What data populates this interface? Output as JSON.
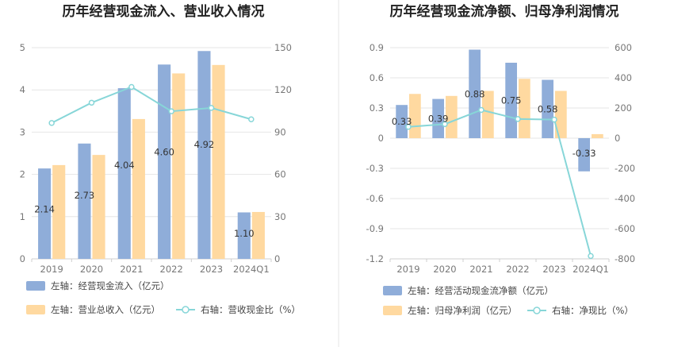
{
  "colors": {
    "bar1": "#8fadd9",
    "bar2": "#ffd9a0",
    "line": "#87d6d8",
    "grid": "#e6e6e6",
    "divider": "#e6e6e6"
  },
  "chart_data": [
    {
      "type": "bar",
      "title": "历年经营现金流入、营业收入情况",
      "categories": [
        "2019",
        "2020",
        "2021",
        "2022",
        "2023",
        "2024Q1"
      ],
      "left_axis": {
        "ticks": [
          "0",
          "1",
          "2",
          "3",
          "4",
          "5"
        ],
        "range": [
          0,
          5
        ]
      },
      "right_axis": {
        "ticks": [
          "0",
          "30",
          "60",
          "90",
          "120",
          "150"
        ],
        "range": [
          0,
          150
        ]
      },
      "series": [
        {
          "name": "左轴：经营现金流入（亿元）",
          "kind": "bar",
          "axis": "left",
          "values": [
            2.14,
            2.73,
            4.04,
            4.6,
            4.92,
            1.1
          ],
          "labels": [
            "2.14",
            "2.73",
            "4.04",
            "4.60",
            "4.92",
            "1.10"
          ]
        },
        {
          "name": "左轴：营业总收入（亿元）",
          "kind": "bar",
          "axis": "left",
          "values": [
            2.22,
            2.46,
            3.31,
            4.39,
            4.59,
            1.11
          ]
        },
        {
          "name": "右轴：营收现金比（%）",
          "kind": "line",
          "axis": "right",
          "values": [
            96.5,
            110.9,
            122.1,
            104.8,
            107.2,
            99.1
          ]
        }
      ],
      "grid": true,
      "legend": "bottom"
    },
    {
      "type": "bar",
      "title": "历年经营现金流净额、归母净利润情况",
      "categories": [
        "2019",
        "2020",
        "2021",
        "2022",
        "2023",
        "2024Q1"
      ],
      "left_axis": {
        "ticks": [
          "-1.2",
          "-0.9",
          "-0.6",
          "-0.3",
          "0",
          "0.3",
          "0.6",
          "0.9"
        ],
        "range": [
          -1.2,
          0.9
        ]
      },
      "right_axis": {
        "ticks": [
          "-800",
          "-600",
          "-400",
          "-200",
          "0",
          "200",
          "400",
          "600"
        ],
        "range": [
          -800,
          600
        ]
      },
      "series": [
        {
          "name": "左轴：经营活动现金流净额（亿元）",
          "kind": "bar",
          "axis": "left",
          "values": [
            0.33,
            0.39,
            0.88,
            0.75,
            0.58,
            -0.33
          ],
          "labels": [
            "0.33",
            "0.39",
            "0.88",
            "0.75",
            "0.58",
            "-0.33"
          ]
        },
        {
          "name": "左轴：归母净利润（亿元）",
          "kind": "bar",
          "axis": "left",
          "values": [
            0.44,
            0.42,
            0.47,
            0.59,
            0.47,
            0.04
          ]
        },
        {
          "name": "右轴：净现比（%）",
          "kind": "line",
          "axis": "right",
          "values": [
            75,
            93,
            187,
            127,
            123,
            -781
          ]
        }
      ],
      "grid": true,
      "legend": "bottom"
    }
  ]
}
